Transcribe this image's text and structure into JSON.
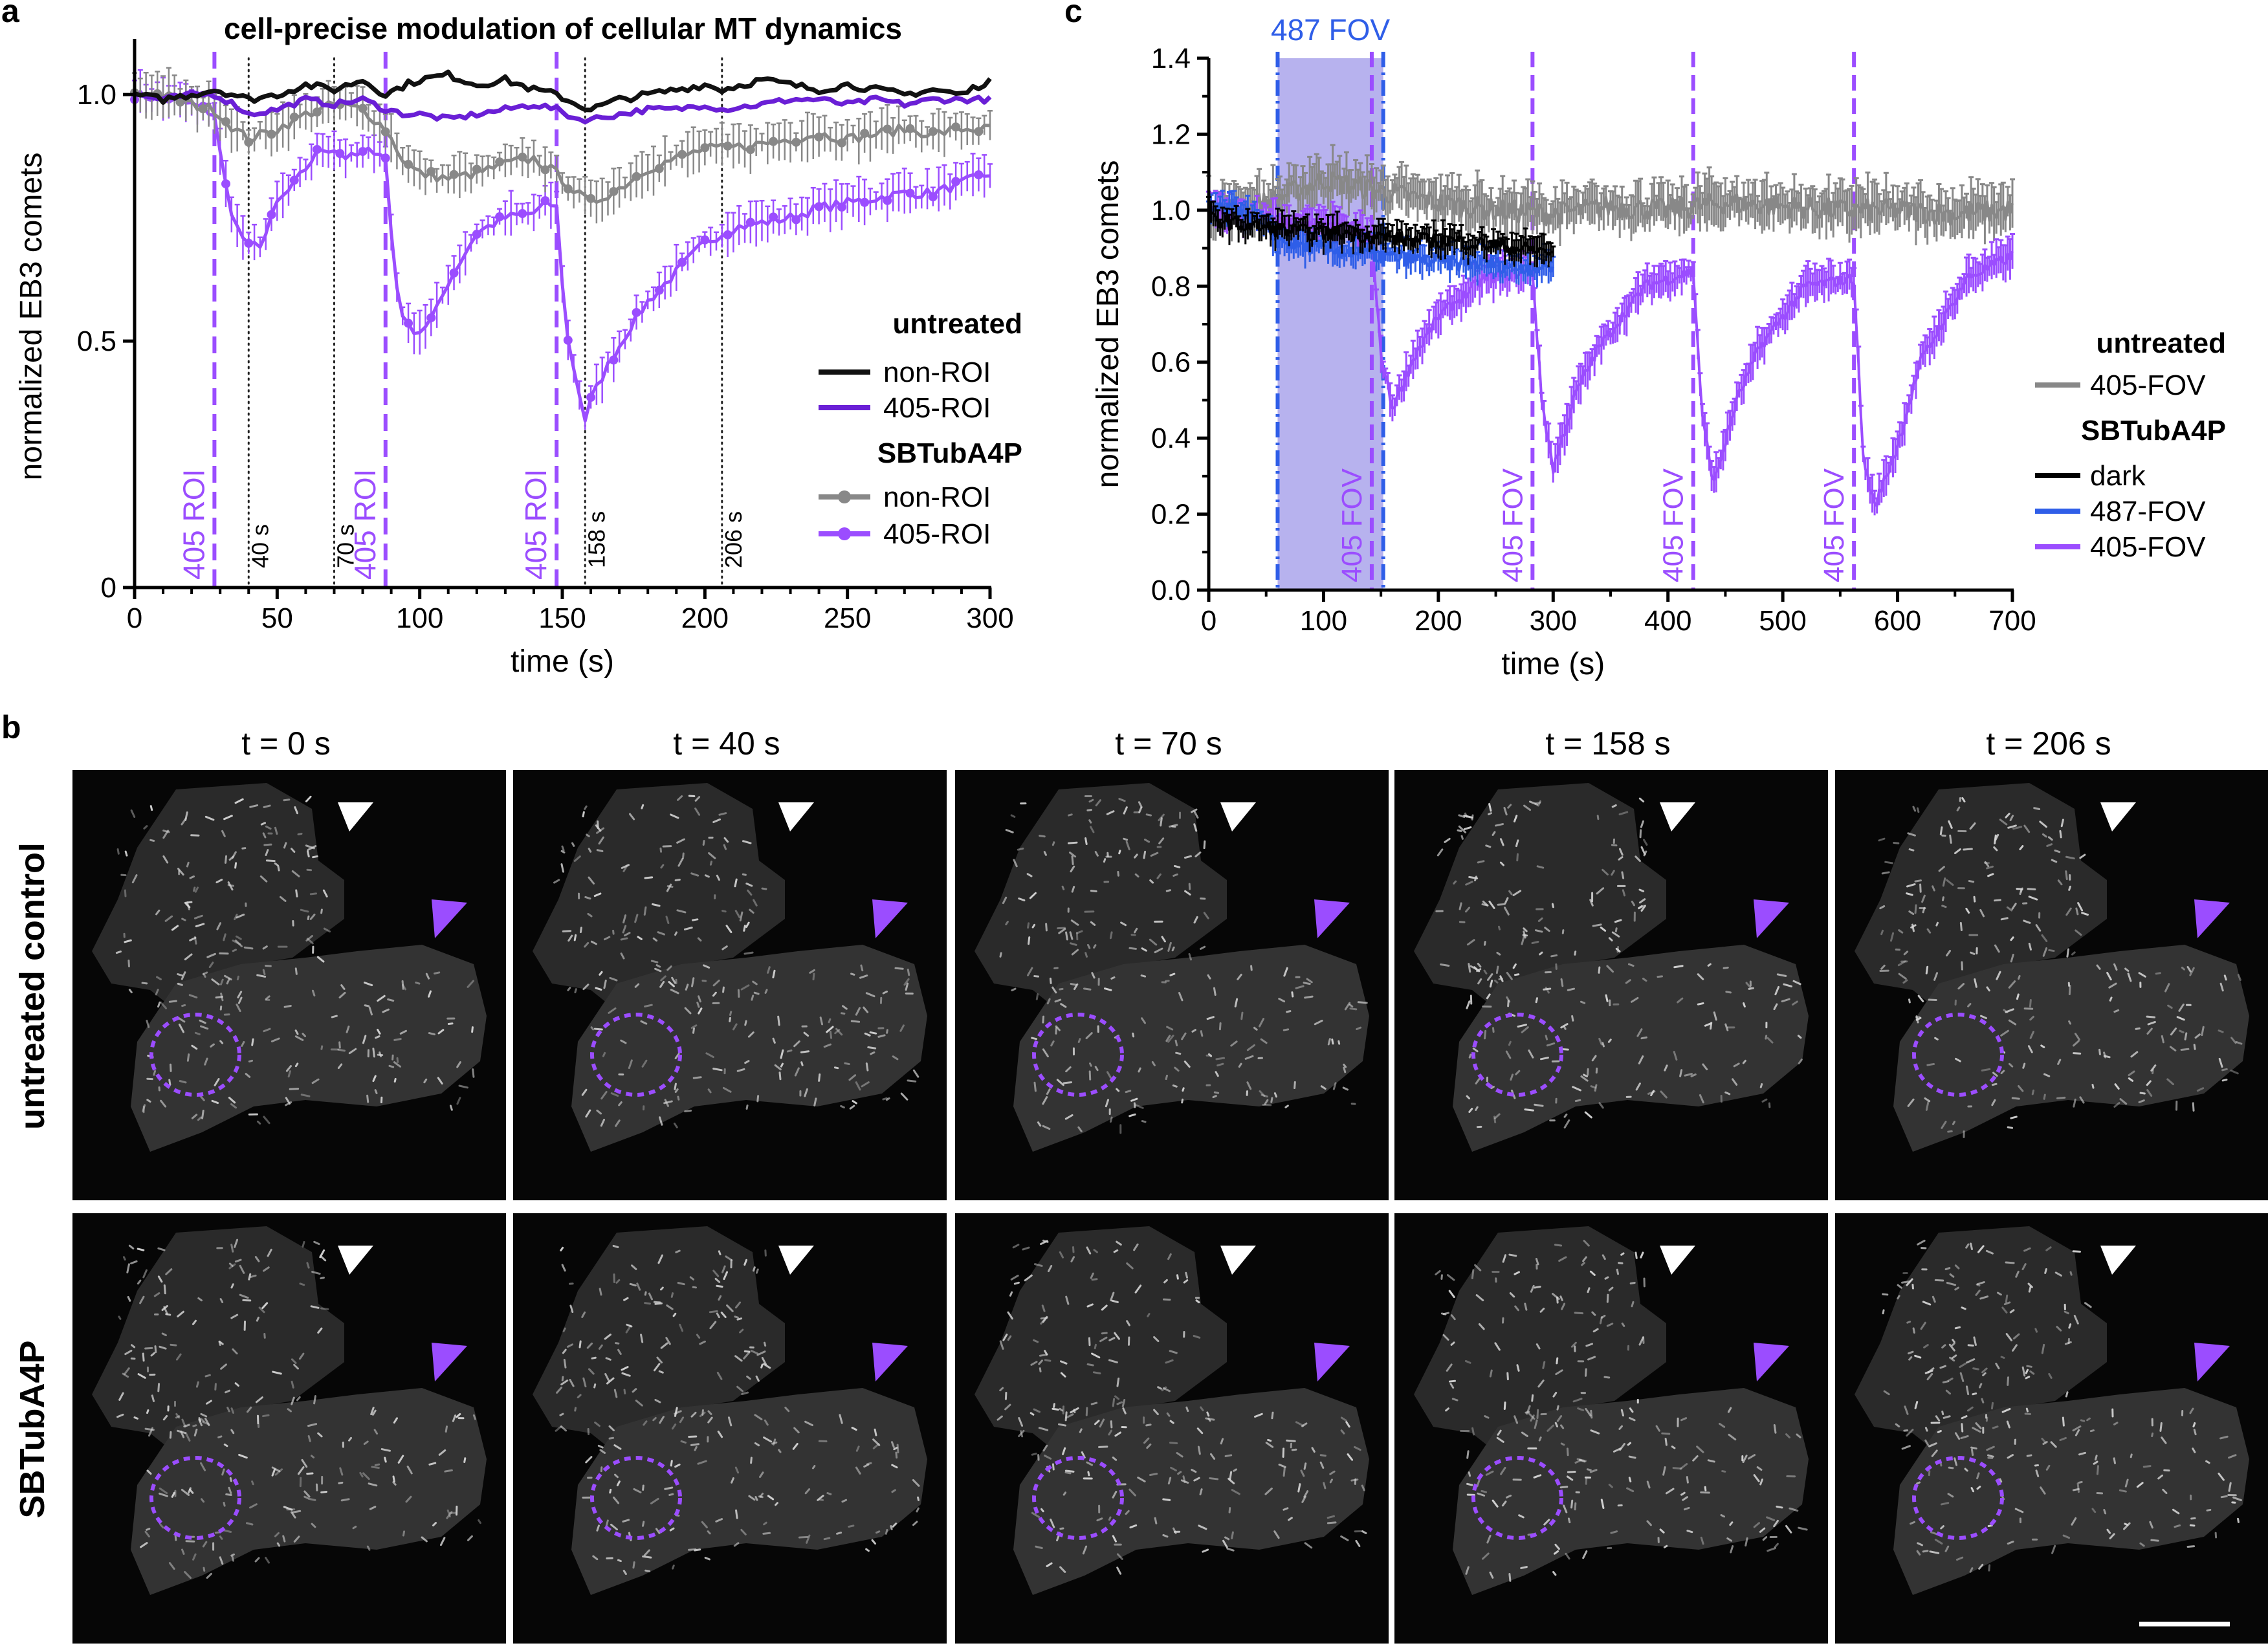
{
  "panels": {
    "a": "a",
    "b": "b",
    "c": "c"
  },
  "chart_data": [
    {
      "id": "a",
      "type": "line",
      "title": "cell-precise modulation of cellular MT dynamics",
      "xlabel": "time (s)",
      "ylabel": "normalized EB3 comets",
      "xlim": [
        0,
        300
      ],
      "ylim": [
        0,
        1.1
      ],
      "xticks": [
        "0",
        "50",
        "100",
        "150",
        "200",
        "250",
        "300"
      ],
      "yticks": [
        "0",
        "0.5",
        "1.0"
      ],
      "legend": {
        "placement": "right",
        "groups": [
          {
            "title": "untreated",
            "entries": [
              "non-ROI",
              "405-ROI"
            ]
          },
          {
            "title": "SBTubA4P",
            "entries": [
              "non-ROI",
              "405-ROI"
            ]
          }
        ]
      },
      "markers_dashed": [
        {
          "x": 28,
          "label": "405 ROI"
        },
        {
          "x": 88,
          "label": "405 ROI"
        },
        {
          "x": 148,
          "label": "405 ROI"
        }
      ],
      "markers_dotted": [
        {
          "x": 40,
          "label": "40 s"
        },
        {
          "x": 70,
          "label": "70 s"
        },
        {
          "x": 158,
          "label": "158 s"
        },
        {
          "x": 206,
          "label": "206 s"
        }
      ],
      "series": [
        {
          "name": "untreated non-ROI",
          "color": "#111111",
          "x": [
            0,
            10,
            20,
            28,
            35,
            40,
            50,
            60,
            70,
            80,
            88,
            95,
            100,
            110,
            120,
            130,
            140,
            148,
            155,
            160,
            170,
            180,
            190,
            200,
            206,
            220,
            230,
            240,
            250,
            260,
            270,
            280,
            290,
            300
          ],
          "y": [
            1.0,
            0.99,
            1.0,
            1.01,
            1.0,
            0.99,
            1.0,
            1.02,
            1.01,
            1.03,
            1.0,
            1.02,
            1.03,
            1.04,
            1.02,
            1.03,
            1.01,
            1.0,
            0.98,
            0.97,
            0.99,
            1.0,
            1.01,
            1.02,
            1.01,
            1.03,
            1.02,
            1.01,
            1.02,
            1.01,
            1.0,
            1.01,
            1.0,
            1.03
          ]
        },
        {
          "name": "untreated 405-ROI",
          "color": "#6a1fd6",
          "x": [
            0,
            10,
            20,
            28,
            35,
            40,
            50,
            60,
            70,
            80,
            88,
            95,
            100,
            110,
            120,
            130,
            140,
            148,
            155,
            160,
            170,
            180,
            190,
            200,
            206,
            220,
            230,
            240,
            250,
            260,
            270,
            280,
            290,
            300
          ],
          "y": [
            1.0,
            0.99,
            1.0,
            1.0,
            0.98,
            0.96,
            0.97,
            0.99,
            0.98,
            0.99,
            0.97,
            0.96,
            0.96,
            0.95,
            0.96,
            0.97,
            0.98,
            0.97,
            0.95,
            0.95,
            0.96,
            0.97,
            0.97,
            0.98,
            0.97,
            0.98,
            0.99,
            0.99,
            0.98,
            0.99,
            0.98,
            0.99,
            0.99,
            0.99
          ]
        },
        {
          "name": "SBTubA4P non-ROI",
          "color": "#888888",
          "x": [
            0,
            10,
            20,
            28,
            35,
            40,
            50,
            60,
            70,
            80,
            88,
            95,
            100,
            110,
            120,
            130,
            140,
            148,
            155,
            160,
            170,
            180,
            190,
            200,
            206,
            220,
            230,
            240,
            250,
            260,
            270,
            280,
            290,
            300
          ],
          "y": [
            1.0,
            1.0,
            0.98,
            0.97,
            0.93,
            0.91,
            0.93,
            0.96,
            0.98,
            0.97,
            0.93,
            0.86,
            0.84,
            0.83,
            0.84,
            0.86,
            0.87,
            0.84,
            0.8,
            0.78,
            0.81,
            0.85,
            0.87,
            0.89,
            0.89,
            0.9,
            0.91,
            0.92,
            0.91,
            0.92,
            0.93,
            0.92,
            0.93,
            0.93
          ]
        },
        {
          "name": "SBTubA4P 405-ROI",
          "color": "#9b4dff",
          "x": [
            0,
            10,
            20,
            28,
            31,
            35,
            40,
            45,
            50,
            55,
            60,
            65,
            70,
            75,
            80,
            85,
            88,
            90,
            92,
            95,
            100,
            105,
            110,
            115,
            120,
            130,
            140,
            145,
            148,
            150,
            152,
            155,
            158,
            160,
            165,
            170,
            175,
            180,
            185,
            190,
            200,
            210,
            220,
            230,
            240,
            250,
            260,
            270,
            280,
            290,
            300
          ],
          "y": [
            1.0,
            0.99,
            0.98,
            0.96,
            0.84,
            0.74,
            0.69,
            0.7,
            0.78,
            0.81,
            0.85,
            0.89,
            0.89,
            0.87,
            0.88,
            0.89,
            0.87,
            0.72,
            0.61,
            0.53,
            0.52,
            0.55,
            0.62,
            0.67,
            0.72,
            0.75,
            0.76,
            0.78,
            0.77,
            0.62,
            0.5,
            0.42,
            0.34,
            0.38,
            0.44,
            0.49,
            0.54,
            0.58,
            0.61,
            0.64,
            0.7,
            0.73,
            0.74,
            0.75,
            0.77,
            0.78,
            0.79,
            0.8,
            0.8,
            0.82,
            0.84
          ]
        }
      ]
    },
    {
      "id": "c",
      "type": "line",
      "xlabel": "time (s)",
      "ylabel": "normalized EB3 comets",
      "xlim": [
        0,
        700
      ],
      "ylim": [
        0,
        1.4
      ],
      "xticks": [
        "0",
        "100",
        "200",
        "300",
        "400",
        "500",
        "600",
        "700"
      ],
      "yticks": [
        "0.0",
        "0.2",
        "0.4",
        "0.6",
        "0.8",
        "1.0",
        "1.2",
        "1.4"
      ],
      "shaded_region": {
        "x0": 60,
        "x1": 152,
        "label": "487 FOV",
        "color": "#b7b2ee"
      },
      "markers_blue": [
        60,
        152
      ],
      "markers_dashed": [
        {
          "x": 142,
          "label": "405 FOV"
        },
        {
          "x": 282,
          "label": "405 FOV"
        },
        {
          "x": 422,
          "label": "405 FOV"
        },
        {
          "x": 562,
          "label": "405 FOV"
        }
      ],
      "legend": {
        "placement": "right",
        "groups": [
          {
            "title": "untreated",
            "entries": [
              "405-FOV"
            ]
          },
          {
            "title": "SBTubA4P",
            "entries": [
              "dark",
              "487-FOV",
              "405-FOV"
            ]
          }
        ]
      },
      "series": [
        {
          "name": "untreated 405-FOV",
          "color": "#888888",
          "x": [
            0,
            50,
            100,
            150,
            200,
            250,
            300,
            350,
            400,
            450,
            500,
            550,
            600,
            650,
            700
          ],
          "y": [
            1.0,
            1.02,
            1.08,
            1.05,
            1.02,
            1.0,
            0.99,
            1.01,
            1.0,
            1.02,
            1.01,
            1.0,
            1.0,
            0.99,
            1.0
          ]
        },
        {
          "name": "SBTubA4P dark",
          "color": "#000000",
          "x": [
            0,
            30,
            60,
            90,
            120,
            150,
            180,
            210,
            240,
            270,
            300
          ],
          "y": [
            0.98,
            0.96,
            0.95,
            0.94,
            0.94,
            0.93,
            0.92,
            0.92,
            0.91,
            0.9,
            0.89
          ]
        },
        {
          "name": "SBTubA4P 487-FOV",
          "color": "#2f5ee8",
          "x": [
            0,
            30,
            60,
            90,
            120,
            150,
            180,
            210,
            240,
            270,
            300
          ],
          "y": [
            1.0,
            1.0,
            0.92,
            0.9,
            0.89,
            0.88,
            0.87,
            0.86,
            0.86,
            0.85,
            0.85
          ]
        },
        {
          "name": "SBTubA4P 405-FOV",
          "color": "#9b4dff",
          "x": [
            0,
            40,
            80,
            120,
            142,
            150,
            160,
            180,
            200,
            240,
            282,
            290,
            300,
            320,
            340,
            380,
            422,
            430,
            440,
            460,
            480,
            520,
            562,
            570,
            580,
            600,
            620,
            660,
            700
          ],
          "y": [
            1.0,
            0.98,
            0.96,
            0.95,
            0.92,
            0.62,
            0.48,
            0.62,
            0.72,
            0.82,
            0.84,
            0.5,
            0.32,
            0.52,
            0.64,
            0.8,
            0.84,
            0.45,
            0.28,
            0.5,
            0.64,
            0.8,
            0.82,
            0.35,
            0.22,
            0.38,
            0.6,
            0.82,
            0.88
          ]
        }
      ]
    }
  ],
  "micrographs": {
    "times": [
      "t = 0 s",
      "t = 40 s",
      "t = 70 s",
      "t = 158 s",
      "t = 206 s"
    ],
    "rows": [
      "untreated control",
      "SBTubA4P"
    ],
    "white_arrow_color": "#ffffff",
    "purple_arrow_color": "#9b4dff",
    "roi_color": "#9b4dff"
  }
}
